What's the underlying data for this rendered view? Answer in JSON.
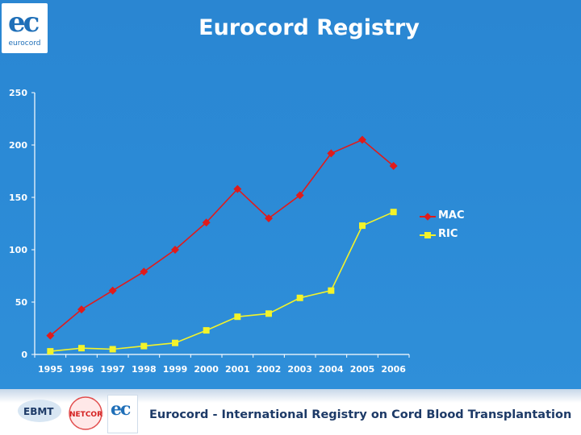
{
  "header": {
    "title": "Eurocord Registry",
    "logo_text": "eurocord"
  },
  "footer": {
    "text": "Eurocord - International Registry on Cord Blood Transplantation",
    "logos": [
      "EBMT",
      "NETCORD",
      "eurocord"
    ]
  },
  "chart_data": {
    "type": "line",
    "categories": [
      "1995",
      "1996",
      "1997",
      "1998",
      "1999",
      "2000",
      "2001",
      "2002",
      "2003",
      "2004",
      "2005",
      "2006"
    ],
    "series": [
      {
        "name": "MAC",
        "color": "#e01b1b",
        "marker": "diamond",
        "values": [
          18,
          43,
          61,
          79,
          100,
          126,
          158,
          130,
          152,
          192,
          205,
          180
        ]
      },
      {
        "name": "RIC",
        "color": "#f3f32a",
        "marker": "square",
        "values": [
          3,
          6,
          5,
          8,
          11,
          23,
          36,
          39,
          54,
          61,
          123,
          136
        ]
      }
    ],
    "ylim": [
      0,
      250
    ],
    "yticks": [
      0,
      50,
      100,
      150,
      200,
      250
    ],
    "legend_position": "right",
    "grid": false
  }
}
